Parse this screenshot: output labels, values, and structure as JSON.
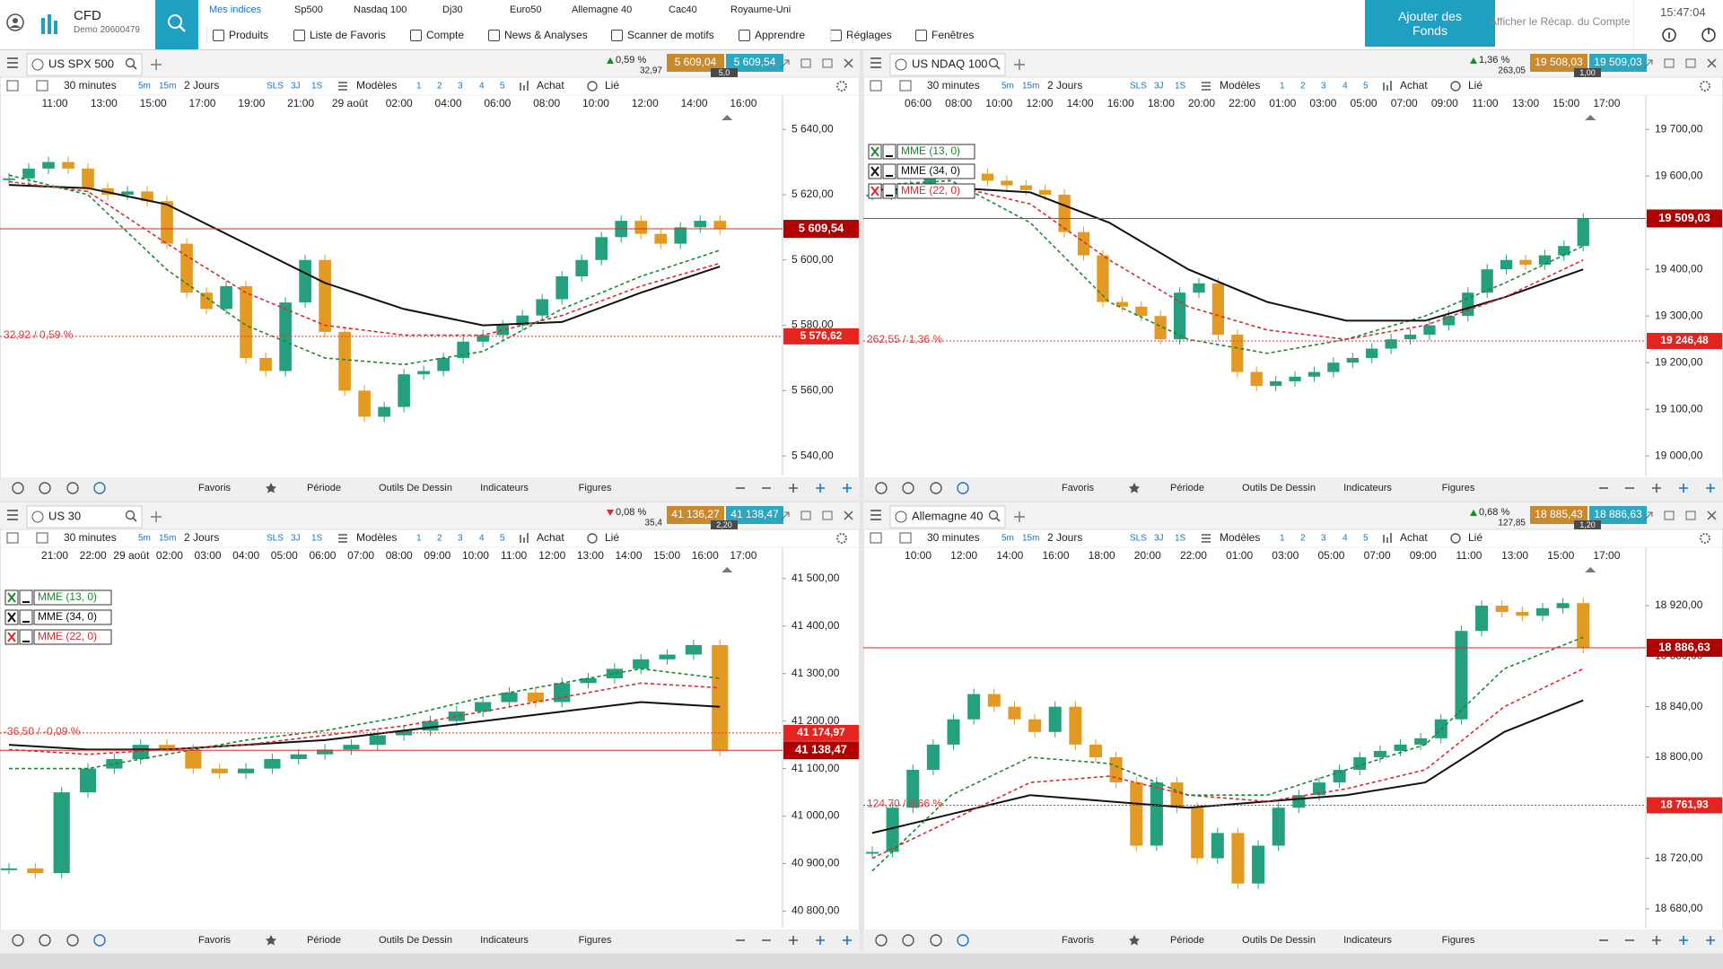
{
  "header": {
    "brand": "CFD",
    "account": "Demo 20600479",
    "markets": [
      "Mes indices",
      "Sp500",
      "Nasdaq 100",
      "Dj30",
      "Euro50",
      "Allemagne 40",
      "Cac40",
      "Royaume-Uni"
    ],
    "menu": [
      "Produits",
      "Liste de Favoris",
      "Compte",
      "News & Analyses",
      "Scanner de motifs",
      "Apprendre",
      "Réglages",
      "Fenêtres"
    ],
    "add_funds": "Ajouter des Fonds",
    "recap": "Afficher le Récap. du Compte",
    "clock": "15:47:04"
  },
  "toolbar": {
    "interval": "30 minutes",
    "buttons": [
      "5m",
      "15m"
    ],
    "range": "2 Jours",
    "quick": [
      "SLS",
      "3J",
      "1S"
    ],
    "models": "Modèles",
    "slots": [
      "1",
      "2",
      "3",
      "4",
      "5"
    ],
    "trade": "Achat",
    "link": "Lié"
  },
  "bottom_bar": [
    "Favoris",
    "Période",
    "Outils De Dessin",
    "Indicateurs",
    "Figures"
  ],
  "panels": [
    {
      "tab": "US SPX 500",
      "direction": "up",
      "change_pct": "0,59 %",
      "change_pts": "32,97",
      "bid": "5 609,04",
      "ask": "5 609,54",
      "spread": "5,0",
      "times": [
        "11:00",
        "13:00",
        "15:00",
        "17:00",
        "19:00",
        "21:00",
        "29 août",
        "02:00",
        "04:00",
        "06:00",
        "08:00",
        "10:00",
        "12:00",
        "14:00",
        "16:00"
      ],
      "ylim": [
        5534,
        5645
      ],
      "yticks": [
        {
          "value": 5640,
          "label": "5 640,00"
        },
        {
          "value": 5620,
          "label": "5 620,00"
        },
        {
          "value": 5600,
          "label": "5 600,00"
        },
        {
          "value": 5580,
          "label": "5 580,00"
        },
        {
          "value": 5560,
          "label": "5 560,00"
        },
        {
          "value": 5540,
          "label": "5 540,00"
        }
      ],
      "price": {
        "value": 5609.54,
        "label": "5 609,54"
      },
      "reference": {
        "value": 5576.62,
        "label": "5 576,62",
        "note": "32,92 / 0,59 %"
      },
      "closes": [
        5625,
        5628,
        5630,
        5628,
        5622,
        5620,
        5621,
        5618,
        5605,
        5590,
        5585,
        5592,
        5570,
        5566,
        5587,
        5600,
        5578,
        5560,
        5552,
        5555,
        5565,
        5566,
        5570,
        5575,
        5577,
        5580,
        5583,
        5588,
        5595,
        5600,
        5607,
        5612,
        5608,
        5605,
        5610,
        5612,
        5609.54
      ],
      "ema": [
        {
          "color": "#111111",
          "dashed": false,
          "values": [
            5623,
            5622,
            5617,
            5605,
            5593,
            5585,
            5580,
            5581,
            5590,
            5598
          ]
        },
        {
          "color": "#e0282e",
          "dashed": true,
          "values": [
            5624,
            5621,
            5605,
            5590,
            5580,
            5577,
            5577,
            5583,
            5592,
            5599
          ]
        },
        {
          "color": "#1b8a2e",
          "dashed": true,
          "values": [
            5626,
            5620,
            5597,
            5580,
            5570,
            5568,
            5572,
            5585,
            5595,
            5603
          ]
        }
      ]
    },
    {
      "tab": "US NDAQ 100",
      "direction": "up",
      "change_pct": "1,36 %",
      "change_pts": "263,05",
      "bid": "19 508,03",
      "ask": "19 509,03",
      "spread": "1,00",
      "times": [
        "06:00",
        "08:00",
        "10:00",
        "12:00",
        "14:00",
        "16:00",
        "18:00",
        "20:00",
        "22:00",
        "01:00",
        "03:00",
        "05:00",
        "07:00",
        "09:00",
        "11:00",
        "13:00",
        "15:00",
        "17:00"
      ],
      "ylim": [
        18958,
        19735
      ],
      "yticks": [
        {
          "value": 19700,
          "label": "19 700,00"
        },
        {
          "value": 19600,
          "label": "19 600,00"
        },
        {
          "value": 19500,
          "label": "19 500,00"
        },
        {
          "value": 19400,
          "label": "19 400,00"
        },
        {
          "value": 19300,
          "label": "19 300,00"
        },
        {
          "value": 19200,
          "label": "19 200,00"
        },
        {
          "value": 19100,
          "label": "19 100,00"
        },
        {
          "value": 19000,
          "label": "19 000,00"
        }
      ],
      "price": {
        "value": 19509.03,
        "label": "19 509,03"
      },
      "reference": {
        "value": 19246.48,
        "label": "19 246,48",
        "note": "262,55 / 1,36 %"
      },
      "closes": [
        19560,
        19570,
        19580,
        19600,
        19610,
        19605,
        19590,
        19580,
        19570,
        19560,
        19480,
        19430,
        19330,
        19320,
        19300,
        19250,
        19350,
        19370,
        19260,
        19180,
        19150,
        19160,
        19170,
        19180,
        19200,
        19210,
        19230,
        19250,
        19260,
        19280,
        19300,
        19350,
        19400,
        19420,
        19410,
        19430,
        19450,
        19509.03
      ],
      "ema": [
        {
          "name": "MME (13, 0)",
          "color": "#1b8a2e",
          "dashed": true,
          "values": [
            19580,
            19590,
            19500,
            19330,
            19250,
            19220,
            19250,
            19300,
            19370,
            19450
          ]
        },
        {
          "name": "MME (34, 0)",
          "color": "#111111",
          "dashed": false,
          "values": [
            19570,
            19575,
            19565,
            19500,
            19400,
            19330,
            19290,
            19290,
            19340,
            19400
          ]
        },
        {
          "name": "MME (22, 0)",
          "color": "#e0282e",
          "dashed": true,
          "values": [
            19575,
            19580,
            19540,
            19420,
            19320,
            19270,
            19250,
            19280,
            19340,
            19420
          ]
        }
      ]
    },
    {
      "tab": "US 30",
      "direction": "down",
      "change_pct": "0,08 %",
      "change_pts": "35,4",
      "bid": "41 136,27",
      "ask": "41 138,47",
      "spread": "2,20",
      "times": [
        "21:00",
        "22:00",
        "29 août",
        "02:00",
        "03:00",
        "04:00",
        "05:00",
        "06:00",
        "07:00",
        "08:00",
        "09:00",
        "10:00",
        "11:00",
        "12:00",
        "13:00",
        "14:00",
        "15:00",
        "16:00",
        "17:00"
      ],
      "ylim": [
        40765,
        41528
      ],
      "yticks": [
        {
          "value": 41500,
          "label": "41 500,00"
        },
        {
          "value": 41400,
          "label": "41 400,00"
        },
        {
          "value": 41300,
          "label": "41 300,00"
        },
        {
          "value": 41200,
          "label": "41 200,00"
        },
        {
          "value": 41100,
          "label": "41 100,00"
        },
        {
          "value": 41000,
          "label": "41 000,00"
        },
        {
          "value": 40900,
          "label": "40 900,00"
        },
        {
          "value": 40800,
          "label": "40 800,00"
        }
      ],
      "price": {
        "value": 41138.47,
        "label": "41 138,47"
      },
      "reference": {
        "value": 41174.97,
        "label": "41 174,97",
        "note": "-36,50 / -0,09 %"
      },
      "closes": [
        40890,
        40880,
        41050,
        41100,
        41120,
        41150,
        41140,
        41100,
        41090,
        41100,
        41120,
        41130,
        41140,
        41150,
        41170,
        41180,
        41200,
        41220,
        41240,
        41260,
        41240,
        41280,
        41290,
        41310,
        41330,
        41340,
        41360,
        41138.47
      ],
      "ema": [
        {
          "name": "MME (13, 0)",
          "color": "#1b8a2e",
          "dashed": true,
          "values": [
            41100,
            41100,
            41130,
            41160,
            41180,
            41210,
            41250,
            41280,
            41310,
            41290
          ]
        },
        {
          "name": "MME (34, 0)",
          "color": "#111111",
          "dashed": false,
          "values": [
            41150,
            41140,
            41140,
            41150,
            41160,
            41180,
            41200,
            41220,
            41240,
            41230
          ]
        },
        {
          "name": "MME (22, 0)",
          "color": "#e0282e",
          "dashed": true,
          "values": [
            41140,
            41130,
            41140,
            41150,
            41170,
            41190,
            41220,
            41250,
            41280,
            41270
          ]
        }
      ]
    },
    {
      "tab": "Allemagne 40",
      "direction": "up",
      "change_pct": "0,68 %",
      "change_pts": "127,85",
      "bid": "18 885,43",
      "ask": "18 886,63",
      "spread": "1,20",
      "times": [
        "10:00",
        "12:00",
        "14:00",
        "16:00",
        "18:00",
        "20:00",
        "22:00",
        "01:00",
        "03:00",
        "05:00",
        "07:00",
        "09:00",
        "11:00",
        "13:00",
        "15:00",
        "17:00"
      ],
      "ylim": [
        18665,
        18952
      ],
      "yticks": [
        {
          "value": 18920,
          "label": "18 920,00"
        },
        {
          "value": 18880,
          "label": "18 880,00"
        },
        {
          "value": 18840,
          "label": "18 840,00"
        },
        {
          "value": 18800,
          "label": "18 800,00"
        },
        {
          "value": 18760,
          "label": "18 760,00"
        },
        {
          "value": 18720,
          "label": "18 720,00"
        },
        {
          "value": 18680,
          "label": "18 680,00"
        }
      ],
      "price": {
        "value": 18886.63,
        "label": "18 886,63"
      },
      "reference": {
        "value": 18761.93,
        "label": "18 761,93",
        "note": "124,70 / 0,66 %"
      },
      "closes": [
        18725,
        18760,
        18790,
        18810,
        18830,
        18850,
        18840,
        18830,
        18820,
        18840,
        18810,
        18800,
        18780,
        18730,
        18780,
        18760,
        18720,
        18740,
        18700,
        18730,
        18760,
        18770,
        18780,
        18790,
        18800,
        18805,
        18810,
        18815,
        18830,
        18900,
        18920,
        18915,
        18912,
        18918,
        18922,
        18886.63
      ],
      "ema": [
        {
          "color": "#111111",
          "dashed": false,
          "values": [
            18740,
            18755,
            18770,
            18765,
            18760,
            18765,
            18770,
            18780,
            18820,
            18845
          ]
        },
        {
          "color": "#e0282e",
          "dashed": true,
          "values": [
            18720,
            18750,
            18780,
            18785,
            18770,
            18765,
            18775,
            18790,
            18840,
            18870
          ]
        },
        {
          "color": "#1b8a2e",
          "dashed": true,
          "values": [
            18710,
            18770,
            18800,
            18795,
            18770,
            18770,
            18790,
            18810,
            18870,
            18895
          ]
        }
      ]
    }
  ]
}
